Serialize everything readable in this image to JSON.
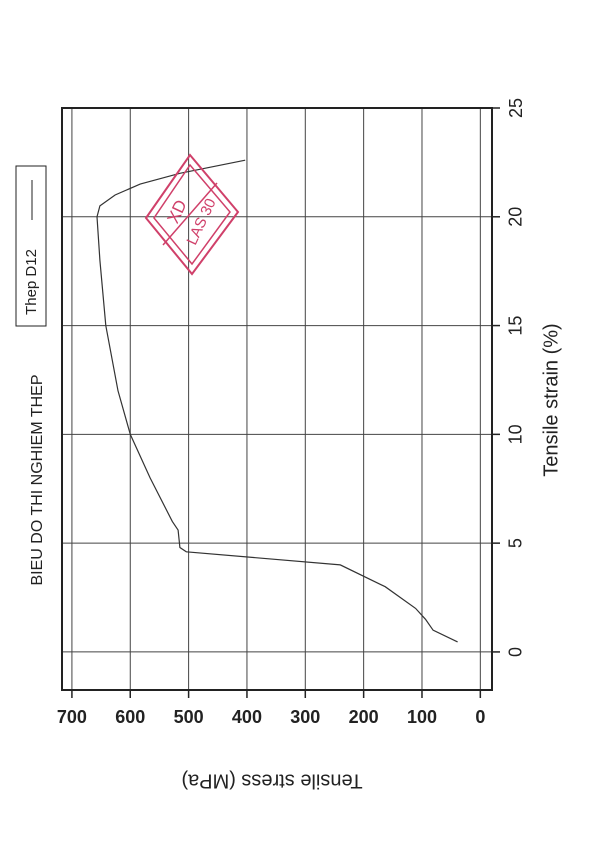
{
  "chart_data": {
    "type": "line",
    "title": "BIEU DO THI NGHIEM THEP",
    "subtitle": "Thep D12",
    "xlabel": "Tensile strain (%)",
    "ylabel": "Tensile stress (MPa)",
    "x": [
      0.46,
      1.0,
      1.5,
      2.0,
      3.0,
      4.0,
      4.6,
      4.8,
      5.6,
      6.0,
      8.0,
      10.0,
      12.0,
      15.0,
      18.0,
      20.0,
      20.5,
      21.0,
      21.5,
      22.0,
      22.6
    ],
    "values": [
      39,
      81,
      94,
      111,
      163,
      240,
      504,
      515,
      518,
      528,
      566,
      600,
      621,
      642,
      652,
      657,
      652,
      626,
      583,
      515,
      403
    ],
    "color": "#333333",
    "xlim": [
      -1.75,
      25
    ],
    "ylim": [
      -20,
      717
    ],
    "xticks": [
      0,
      5,
      10,
      15,
      20,
      25
    ],
    "yticks": [
      0,
      100,
      200,
      300,
      400,
      500,
      600,
      700
    ],
    "grid": true,
    "stamp": {
      "lines": [
        "XD",
        "LAS 30"
      ],
      "color": "#d0406a"
    }
  }
}
